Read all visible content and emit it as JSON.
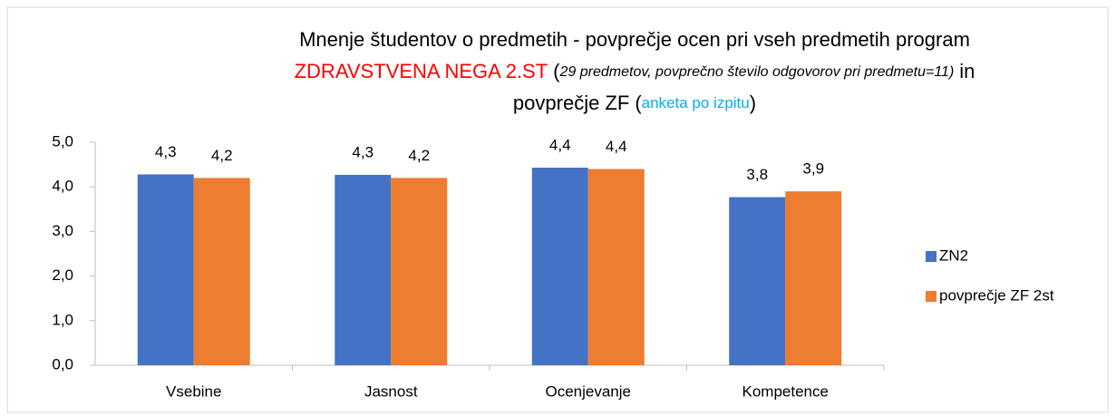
{
  "chart_data": {
    "type": "bar",
    "title_lines": [
      [
        {
          "text": "Mnenje študentov o predmetih - povprečje ocen pri vseh predmetih program",
          "color": "#000000"
        }
      ],
      [
        {
          "text": "ZDRAVSTVENA NEGA 2.ST",
          "color": "#ff0000"
        },
        {
          "text": "(",
          "color": "#000000"
        },
        {
          "text": "29 predmetov, povprečno število odgovorov pri predmetu=11)",
          "color": "#000000",
          "style": "italic"
        },
        {
          "text": "in",
          "color": "#000000"
        }
      ],
      [
        {
          "text": "povprečje ZF",
          "color": "#000000"
        },
        {
          "text": "(",
          "color": "#000000"
        },
        {
          "text": "anketa po izpitu",
          "color": "#00b0f0",
          "style": "small"
        },
        {
          "text": ")",
          "color": "#000000"
        }
      ]
    ],
    "categories": [
      "Vsebine",
      "Jasnost",
      "Ocenjevanje",
      "Kompetence"
    ],
    "series": [
      {
        "name": "ZN2",
        "color": "#4472c4",
        "values": [
          4.28,
          4.27,
          4.43,
          3.77
        ],
        "value_labels": [
          "4,3",
          "4,3",
          "4,4",
          "3,8"
        ]
      },
      {
        "name": "povprečje ZF 2st",
        "color": "#ed7d31",
        "values": [
          4.2,
          4.2,
          4.4,
          3.9
        ],
        "value_labels": [
          "4,2",
          "4,2",
          "4,4",
          "3,9"
        ]
      }
    ],
    "ylim": [
      0,
      5
    ],
    "yticks": [
      {
        "value": 0,
        "label": "0,0"
      },
      {
        "value": 1,
        "label": "1,0"
      },
      {
        "value": 2,
        "label": "2,0"
      },
      {
        "value": 3,
        "label": "3,0"
      },
      {
        "value": 4,
        "label": "4,0"
      },
      {
        "value": 5,
        "label": "5,0"
      }
    ],
    "legend": "right"
  }
}
